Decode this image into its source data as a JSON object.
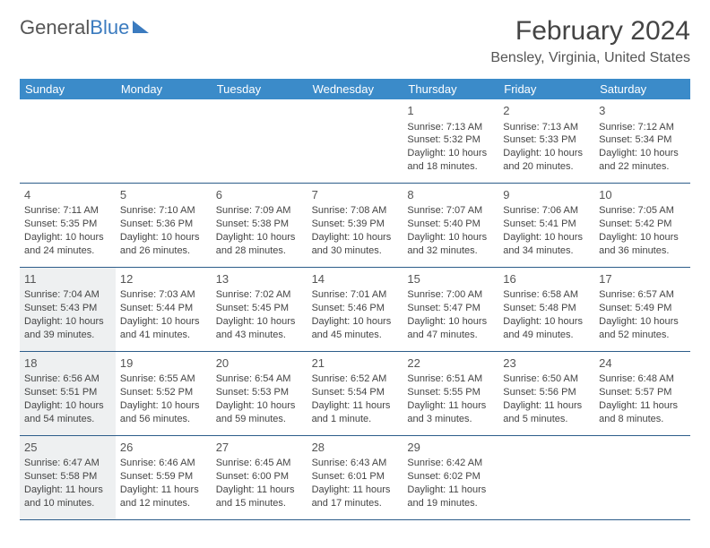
{
  "logo": {
    "textGray": "General",
    "textBlue": "Blue"
  },
  "title": "February 2024",
  "location": "Bensley, Virginia, United States",
  "colors": {
    "headerBar": "#3b8bc9",
    "rowBorder": "#2d5d8a",
    "shaded": "#eef0f1",
    "logoBlue": "#3b7bbf"
  },
  "dow": [
    "Sunday",
    "Monday",
    "Tuesday",
    "Wednesday",
    "Thursday",
    "Friday",
    "Saturday"
  ],
  "weeks": [
    [
      null,
      null,
      null,
      null,
      {
        "n": "1",
        "sr": "Sunrise: 7:13 AM",
        "ss": "Sunset: 5:32 PM",
        "dl1": "Daylight: 10 hours",
        "dl2": "and 18 minutes."
      },
      {
        "n": "2",
        "sr": "Sunrise: 7:13 AM",
        "ss": "Sunset: 5:33 PM",
        "dl1": "Daylight: 10 hours",
        "dl2": "and 20 minutes."
      },
      {
        "n": "3",
        "sr": "Sunrise: 7:12 AM",
        "ss": "Sunset: 5:34 PM",
        "dl1": "Daylight: 10 hours",
        "dl2": "and 22 minutes."
      }
    ],
    [
      {
        "n": "4",
        "sr": "Sunrise: 7:11 AM",
        "ss": "Sunset: 5:35 PM",
        "dl1": "Daylight: 10 hours",
        "dl2": "and 24 minutes."
      },
      {
        "n": "5",
        "sr": "Sunrise: 7:10 AM",
        "ss": "Sunset: 5:36 PM",
        "dl1": "Daylight: 10 hours",
        "dl2": "and 26 minutes."
      },
      {
        "n": "6",
        "sr": "Sunrise: 7:09 AM",
        "ss": "Sunset: 5:38 PM",
        "dl1": "Daylight: 10 hours",
        "dl2": "and 28 minutes."
      },
      {
        "n": "7",
        "sr": "Sunrise: 7:08 AM",
        "ss": "Sunset: 5:39 PM",
        "dl1": "Daylight: 10 hours",
        "dl2": "and 30 minutes."
      },
      {
        "n": "8",
        "sr": "Sunrise: 7:07 AM",
        "ss": "Sunset: 5:40 PM",
        "dl1": "Daylight: 10 hours",
        "dl2": "and 32 minutes."
      },
      {
        "n": "9",
        "sr": "Sunrise: 7:06 AM",
        "ss": "Sunset: 5:41 PM",
        "dl1": "Daylight: 10 hours",
        "dl2": "and 34 minutes."
      },
      {
        "n": "10",
        "sr": "Sunrise: 7:05 AM",
        "ss": "Sunset: 5:42 PM",
        "dl1": "Daylight: 10 hours",
        "dl2": "and 36 minutes."
      }
    ],
    [
      {
        "n": "11",
        "sr": "Sunrise: 7:04 AM",
        "ss": "Sunset: 5:43 PM",
        "dl1": "Daylight: 10 hours",
        "dl2": "and 39 minutes.",
        "shaded": true
      },
      {
        "n": "12",
        "sr": "Sunrise: 7:03 AM",
        "ss": "Sunset: 5:44 PM",
        "dl1": "Daylight: 10 hours",
        "dl2": "and 41 minutes."
      },
      {
        "n": "13",
        "sr": "Sunrise: 7:02 AM",
        "ss": "Sunset: 5:45 PM",
        "dl1": "Daylight: 10 hours",
        "dl2": "and 43 minutes."
      },
      {
        "n": "14",
        "sr": "Sunrise: 7:01 AM",
        "ss": "Sunset: 5:46 PM",
        "dl1": "Daylight: 10 hours",
        "dl2": "and 45 minutes."
      },
      {
        "n": "15",
        "sr": "Sunrise: 7:00 AM",
        "ss": "Sunset: 5:47 PM",
        "dl1": "Daylight: 10 hours",
        "dl2": "and 47 minutes."
      },
      {
        "n": "16",
        "sr": "Sunrise: 6:58 AM",
        "ss": "Sunset: 5:48 PM",
        "dl1": "Daylight: 10 hours",
        "dl2": "and 49 minutes."
      },
      {
        "n": "17",
        "sr": "Sunrise: 6:57 AM",
        "ss": "Sunset: 5:49 PM",
        "dl1": "Daylight: 10 hours",
        "dl2": "and 52 minutes."
      }
    ],
    [
      {
        "n": "18",
        "sr": "Sunrise: 6:56 AM",
        "ss": "Sunset: 5:51 PM",
        "dl1": "Daylight: 10 hours",
        "dl2": "and 54 minutes.",
        "shaded": true
      },
      {
        "n": "19",
        "sr": "Sunrise: 6:55 AM",
        "ss": "Sunset: 5:52 PM",
        "dl1": "Daylight: 10 hours",
        "dl2": "and 56 minutes."
      },
      {
        "n": "20",
        "sr": "Sunrise: 6:54 AM",
        "ss": "Sunset: 5:53 PM",
        "dl1": "Daylight: 10 hours",
        "dl2": "and 59 minutes."
      },
      {
        "n": "21",
        "sr": "Sunrise: 6:52 AM",
        "ss": "Sunset: 5:54 PM",
        "dl1": "Daylight: 11 hours",
        "dl2": "and 1 minute."
      },
      {
        "n": "22",
        "sr": "Sunrise: 6:51 AM",
        "ss": "Sunset: 5:55 PM",
        "dl1": "Daylight: 11 hours",
        "dl2": "and 3 minutes."
      },
      {
        "n": "23",
        "sr": "Sunrise: 6:50 AM",
        "ss": "Sunset: 5:56 PM",
        "dl1": "Daylight: 11 hours",
        "dl2": "and 5 minutes."
      },
      {
        "n": "24",
        "sr": "Sunrise: 6:48 AM",
        "ss": "Sunset: 5:57 PM",
        "dl1": "Daylight: 11 hours",
        "dl2": "and 8 minutes."
      }
    ],
    [
      {
        "n": "25",
        "sr": "Sunrise: 6:47 AM",
        "ss": "Sunset: 5:58 PM",
        "dl1": "Daylight: 11 hours",
        "dl2": "and 10 minutes.",
        "shaded": true
      },
      {
        "n": "26",
        "sr": "Sunrise: 6:46 AM",
        "ss": "Sunset: 5:59 PM",
        "dl1": "Daylight: 11 hours",
        "dl2": "and 12 minutes."
      },
      {
        "n": "27",
        "sr": "Sunrise: 6:45 AM",
        "ss": "Sunset: 6:00 PM",
        "dl1": "Daylight: 11 hours",
        "dl2": "and 15 minutes."
      },
      {
        "n": "28",
        "sr": "Sunrise: 6:43 AM",
        "ss": "Sunset: 6:01 PM",
        "dl1": "Daylight: 11 hours",
        "dl2": "and 17 minutes."
      },
      {
        "n": "29",
        "sr": "Sunrise: 6:42 AM",
        "ss": "Sunset: 6:02 PM",
        "dl1": "Daylight: 11 hours",
        "dl2": "and 19 minutes."
      },
      null,
      null
    ]
  ]
}
